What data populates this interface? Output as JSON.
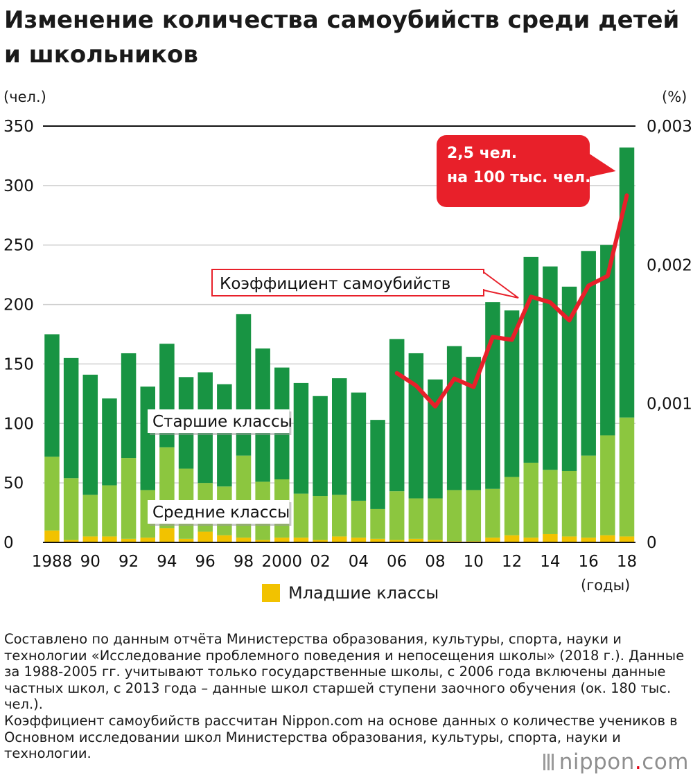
{
  "title": "Изменение количества самоубийств среди детей и школьников",
  "left_unit": "(чел.)",
  "right_unit": "(%)",
  "x_unit": "(годы)",
  "legend": {
    "label": "Младшие классы",
    "color": "#f2c200"
  },
  "footnote": [
    "Составлено по данным отчёта Министерства образования, культуры, спорта, науки и технологии «Исследование проблемного поведения и непосещения школы» (2018 г.). Данные за 1988-2005 гг. учитывают только государственные школы, с 2006 года включены данные частных школ, с 2013 года – данные школ старшей ступени заочного обучения (ок. 180 тыс. чел.).",
    "Коэффициент самоубийств рассчитан Nippon.com на основе данных о количестве учеников в Основном исследовании школ Министерства образования, культуры, спорта, науки и технологии."
  ],
  "logo": {
    "text": "nippon",
    "dot": ".",
    "suffix": "com"
  },
  "colors": {
    "high": "#189443",
    "middle": "#8cc63f",
    "elementary": "#f2c200",
    "rate": "#e8202a"
  },
  "chart_data": {
    "type": "bar",
    "stacked": true,
    "years": [
      1988,
      1989,
      1990,
      1991,
      1992,
      1993,
      1994,
      1995,
      1996,
      1997,
      1998,
      1999,
      2000,
      2001,
      2002,
      2003,
      2004,
      2005,
      2006,
      2007,
      2008,
      2009,
      2010,
      2011,
      2012,
      2013,
      2014,
      2015,
      2016,
      2017,
      2018
    ],
    "x_tick_labels": [
      "1988",
      "90",
      "92",
      "94",
      "96",
      "98",
      "2000",
      "02",
      "04",
      "06",
      "08",
      "10",
      "12",
      "14",
      "16",
      "18"
    ],
    "x_tick_years": [
      1988,
      1990,
      1992,
      1994,
      1996,
      1998,
      2000,
      2002,
      2004,
      2006,
      2008,
      2010,
      2012,
      2014,
      2016,
      2018
    ],
    "series": [
      {
        "name": "Младшие классы",
        "color": "#f2c200",
        "values": [
          10,
          2,
          5,
          5,
          3,
          4,
          12,
          3,
          9,
          6,
          4,
          2,
          4,
          4,
          2,
          5,
          4,
          3,
          2,
          3,
          2,
          1,
          1,
          4,
          6,
          4,
          7,
          5,
          4,
          6,
          5
        ]
      },
      {
        "name": "Средние классы",
        "color": "#8cc63f",
        "values": [
          62,
          52,
          35,
          43,
          68,
          40,
          68,
          59,
          41,
          41,
          69,
          49,
          49,
          37,
          37,
          35,
          31,
          25,
          41,
          34,
          35,
          43,
          43,
          41,
          49,
          63,
          54,
          55,
          69,
          84,
          100
        ]
      },
      {
        "name": "Старшие классы",
        "color": "#189443",
        "values": [
          103,
          101,
          101,
          73,
          88,
          87,
          87,
          77,
          93,
          86,
          119,
          112,
          94,
          93,
          84,
          98,
          91,
          75,
          128,
          122,
          100,
          121,
          112,
          157,
          140,
          173,
          171,
          155,
          172,
          160,
          227
        ]
      }
    ],
    "series_labels": [
      "Старшие классы",
      "Средние классы"
    ],
    "ylim": [
      0,
      350
    ],
    "yticks": [
      0,
      50,
      100,
      150,
      200,
      250,
      300,
      350
    ],
    "ytick_labels": [
      "0",
      "50",
      "100",
      "150",
      "200",
      "250",
      "300",
      "350"
    ],
    "y2lim": [
      0,
      0.003
    ],
    "y2ticks": [
      0,
      0.001,
      0.002,
      0.003
    ],
    "y2tick_labels": [
      "0",
      "0,001",
      "0,002",
      "0,003"
    ],
    "line_series": {
      "name": "Коэффициент самоубийств",
      "color": "#e8202a",
      "x": [
        2006,
        2007,
        2008,
        2009,
        2010,
        2011,
        2012,
        2013,
        2014,
        2015,
        2016,
        2017,
        2018
      ],
      "values": [
        0.00122,
        0.00113,
        0.00098,
        0.00118,
        0.00112,
        0.00148,
        0.00146,
        0.00177,
        0.00173,
        0.0016,
        0.00185,
        0.00192,
        0.0025
      ]
    },
    "callout": {
      "lines": [
        "2,5 чел.",
        "на 100 тыс. чел."
      ]
    },
    "grid": true
  }
}
